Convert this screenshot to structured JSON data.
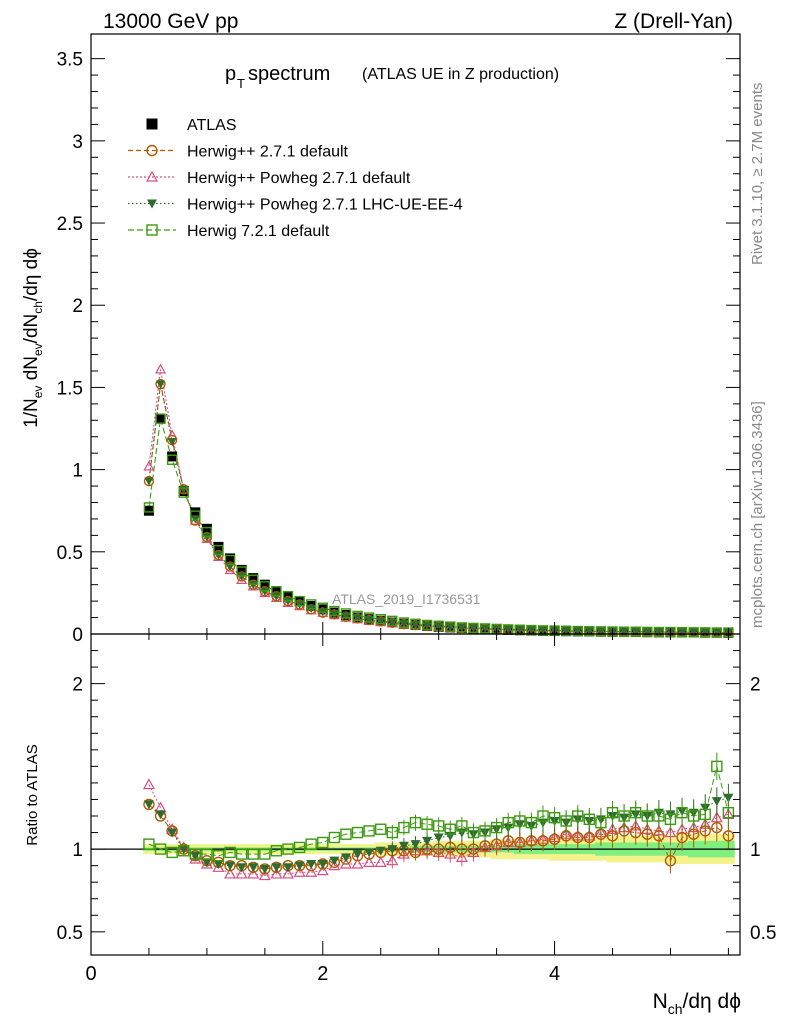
{
  "header": {
    "energy": "13000 GeV pp",
    "process": "Z (Drell-Yan)"
  },
  "side_labels": {
    "rivet": "Rivet 3.1.10, ≥ 2.7M events",
    "mcplots": "mcplots.cern.ch [arXiv:1306.3436]"
  },
  "watermark": "ATLAS_2019_I1736531",
  "colors": {
    "atlas": "#000000",
    "herwig271": "#b35a00",
    "powheg": "#d64d82",
    "powheg_ue": "#2f6a2f",
    "herwig721": "#3c9a10",
    "band_inner": "#7ff07f",
    "band_outer": "#f4f28a"
  },
  "chart_data": [
    {
      "type": "scatter",
      "title_main": "p",
      "title_sub": "T",
      "title_rest": " spectrum",
      "title_note": "(ATLAS UE in Z production)",
      "xlabel": "N_ch/dη dϕ",
      "ylabel": "1/N_ev dN_ev/dN_ch/dη dϕ",
      "xlim": [
        0,
        5.6
      ],
      "ylim": [
        0,
        3.65
      ],
      "xticks": [
        0,
        2,
        4
      ],
      "yticks": [
        0,
        0.5,
        1,
        1.5,
        2,
        2.5,
        3,
        3.5
      ],
      "ytick_labels": [
        "0",
        "0.5",
        "1",
        "1.5",
        "2",
        "2.5",
        "3",
        "3.5"
      ],
      "x": [
        0.5,
        0.6,
        0.7,
        0.8,
        0.9,
        1.0,
        1.1,
        1.2,
        1.3,
        1.4,
        1.5,
        1.6,
        1.7,
        1.8,
        1.9,
        2.0,
        2.1,
        2.2,
        2.3,
        2.4,
        2.5,
        2.6,
        2.7,
        2.8,
        2.9,
        3.0,
        3.1,
        3.2,
        3.3,
        3.4,
        3.5,
        3.6,
        3.7,
        3.8,
        3.9,
        4.0,
        4.1,
        4.2,
        4.3,
        4.4,
        4.5,
        4.6,
        4.7,
        4.8,
        4.9,
        5.0,
        5.1,
        5.2,
        5.3,
        5.4,
        5.5
      ],
      "legend": [
        {
          "key": "atlas",
          "label": "ATLAS"
        },
        {
          "key": "herwig271",
          "label": "Herwig++ 2.7.1 default"
        },
        {
          "key": "powheg",
          "label": "Herwig++ Powheg 2.7.1 default"
        },
        {
          "key": "powheg_ue",
          "label": "Herwig++ Powheg 2.7.1 LHC-UE-EE-4"
        },
        {
          "key": "herwig721",
          "label": "Herwig 7.2.1 default"
        }
      ],
      "series": [
        {
          "key": "atlas",
          "name": "ATLAS",
          "values": [
            0.75,
            1.31,
            1.08,
            0.87,
            0.74,
            0.64,
            0.53,
            0.46,
            0.39,
            0.34,
            0.3,
            0.26,
            0.23,
            0.2,
            0.17,
            0.15,
            0.13,
            0.115,
            0.1,
            0.09,
            0.08,
            0.07,
            0.062,
            0.055,
            0.049,
            0.044,
            0.04,
            0.036,
            0.033,
            0.03,
            0.027,
            0.025,
            0.023,
            0.021,
            0.019,
            0.018,
            0.017,
            0.016,
            0.015,
            0.014,
            0.013,
            0.012,
            0.012,
            0.011,
            0.01,
            0.01,
            0.009,
            0.009,
            0.008,
            0.008,
            0.007
          ]
        },
        {
          "key": "herwig271",
          "name": "Herwig++ 2.7.1 default",
          "values": [
            0.93,
            1.52,
            1.18,
            0.88,
            0.69,
            0.59,
            0.48,
            0.41,
            0.35,
            0.3,
            0.26,
            0.23,
            0.2,
            0.18,
            0.15,
            0.13,
            0.12,
            0.105,
            0.095,
            0.085,
            0.077,
            0.068,
            0.06,
            0.054,
            0.05,
            0.045,
            0.041,
            0.037,
            0.034,
            0.031,
            0.028,
            0.026,
            0.024,
            0.022,
            0.02,
            0.019,
            0.018,
            0.017,
            0.016,
            0.015,
            0.014,
            0.013,
            0.013,
            0.012,
            0.011,
            0.011,
            0.01,
            0.01,
            0.009,
            0.009,
            0.008
          ]
        },
        {
          "key": "powheg",
          "name": "Herwig++ Powheg 2.7.1 default",
          "values": [
            1.02,
            1.61,
            1.21,
            0.88,
            0.69,
            0.58,
            0.47,
            0.39,
            0.33,
            0.29,
            0.25,
            0.22,
            0.19,
            0.17,
            0.145,
            0.13,
            0.115,
            0.1,
            0.09,
            0.08,
            0.073,
            0.065,
            0.058,
            0.052,
            0.047,
            0.043,
            0.039,
            0.035,
            0.032,
            0.029,
            0.027,
            0.025,
            0.023,
            0.021,
            0.02,
            0.019,
            0.018,
            0.017,
            0.016,
            0.015,
            0.014,
            0.013,
            0.013,
            0.012,
            0.011,
            0.011,
            0.01,
            0.01,
            0.009,
            0.009,
            0.008
          ]
        },
        {
          "key": "powheg_ue",
          "name": "Herwig++ Powheg 2.7.1 LHC-UE-EE-4",
          "values": [
            0.93,
            1.52,
            1.17,
            0.88,
            0.7,
            0.59,
            0.48,
            0.41,
            0.35,
            0.3,
            0.26,
            0.23,
            0.2,
            0.18,
            0.155,
            0.135,
            0.12,
            0.11,
            0.097,
            0.087,
            0.079,
            0.071,
            0.063,
            0.057,
            0.052,
            0.047,
            0.043,
            0.039,
            0.036,
            0.033,
            0.03,
            0.028,
            0.026,
            0.024,
            0.022,
            0.021,
            0.02,
            0.019,
            0.018,
            0.017,
            0.016,
            0.015,
            0.014,
            0.013,
            0.012,
            0.012,
            0.011,
            0.011,
            0.01,
            0.01,
            0.009
          ]
        },
        {
          "key": "herwig721",
          "name": "Herwig 7.2.1 default",
          "values": [
            0.77,
            1.31,
            1.06,
            0.86,
            0.72,
            0.62,
            0.51,
            0.45,
            0.38,
            0.33,
            0.29,
            0.26,
            0.23,
            0.2,
            0.18,
            0.16,
            0.14,
            0.125,
            0.11,
            0.1,
            0.09,
            0.08,
            0.07,
            0.062,
            0.055,
            0.05,
            0.045,
            0.04,
            0.037,
            0.034,
            0.031,
            0.028,
            0.026,
            0.024,
            0.022,
            0.021,
            0.02,
            0.018,
            0.017,
            0.016,
            0.015,
            0.014,
            0.014,
            0.013,
            0.012,
            0.012,
            0.011,
            0.01,
            0.01,
            0.009,
            0.009
          ]
        }
      ]
    },
    {
      "type": "scatter",
      "ylabel": "Ratio to ATLAS",
      "xlim": [
        0,
        5.6
      ],
      "ylim": [
        0.36,
        2.3
      ],
      "yticks": [
        0.5,
        1,
        2
      ],
      "ytick_labels": [
        "0.5",
        "1",
        "2"
      ],
      "xticks": [
        0,
        2,
        4
      ],
      "xtick_labels": [
        "0",
        "2",
        "4"
      ],
      "band_inner": [
        0.99,
        0.99,
        0.99,
        0.99,
        0.99,
        0.99,
        0.99,
        0.99,
        0.99,
        0.99,
        0.99,
        0.99,
        0.99,
        0.99,
        0.99,
        0.99,
        0.99,
        0.99,
        0.99,
        0.99,
        0.99,
        0.99,
        0.99,
        0.98,
        0.98,
        0.98,
        0.98,
        0.98,
        0.98,
        0.98,
        0.98,
        0.98,
        0.97,
        0.97,
        0.97,
        0.97,
        0.97,
        0.97,
        0.97,
        0.96,
        0.96,
        0.96,
        0.96,
        0.96,
        0.96,
        0.96,
        0.96,
        0.95,
        0.95,
        0.95,
        0.95
      ],
      "band_outer": [
        0.97,
        0.97,
        0.97,
        0.97,
        0.97,
        0.97,
        0.97,
        0.97,
        0.97,
        0.97,
        0.97,
        0.97,
        0.97,
        0.97,
        0.97,
        0.97,
        0.97,
        0.97,
        0.97,
        0.97,
        0.96,
        0.96,
        0.96,
        0.96,
        0.96,
        0.95,
        0.95,
        0.95,
        0.95,
        0.95,
        0.94,
        0.94,
        0.94,
        0.94,
        0.94,
        0.93,
        0.93,
        0.93,
        0.93,
        0.93,
        0.92,
        0.92,
        0.92,
        0.92,
        0.92,
        0.91,
        0.91,
        0.91,
        0.91,
        0.91,
        0.91
      ],
      "series": [
        {
          "key": "herwig271",
          "values": [
            1.27,
            1.2,
            1.11,
            1.0,
            0.96,
            0.93,
            0.92,
            0.9,
            0.9,
            0.89,
            0.88,
            0.89,
            0.9,
            0.9,
            0.9,
            0.91,
            0.92,
            0.94,
            0.96,
            0.97,
            0.98,
            0.99,
            0.99,
            0.98,
            1.0,
            1.0,
            1.01,
            1.0,
            1.0,
            1.02,
            1.03,
            1.05,
            1.04,
            1.05,
            1.05,
            1.06,
            1.08,
            1.07,
            1.07,
            1.09,
            1.08,
            1.11,
            1.1,
            1.09,
            1.08,
            0.93,
            1.07,
            1.09,
            1.11,
            1.13,
            1.08
          ]
        },
        {
          "key": "powheg",
          "values": [
            1.39,
            1.25,
            1.12,
            1.01,
            0.94,
            0.91,
            0.89,
            0.85,
            0.85,
            0.85,
            0.84,
            0.85,
            0.85,
            0.86,
            0.86,
            0.87,
            0.9,
            0.91,
            0.91,
            0.92,
            0.92,
            0.93,
            0.97,
            0.99,
            0.99,
            0.98,
            0.97,
            0.95,
            0.98,
            1.01,
            1.02,
            1.04,
            1.04,
            1.05,
            1.06,
            1.07,
            1.09,
            1.08,
            1.08,
            1.1,
            1.12,
            1.13,
            1.14,
            1.12,
            1.11,
            1.1,
            1.12,
            1.13,
            1.15,
            1.19,
            1.21
          ]
        },
        {
          "key": "powheg_ue",
          "values": [
            1.27,
            1.21,
            1.1,
            1.0,
            0.96,
            0.92,
            0.91,
            0.9,
            0.89,
            0.89,
            0.88,
            0.89,
            0.89,
            0.9,
            0.91,
            0.91,
            0.93,
            0.95,
            0.97,
            0.98,
            0.99,
            1.0,
            1.02,
            1.03,
            1.05,
            1.07,
            1.08,
            1.1,
            1.09,
            1.1,
            1.12,
            1.13,
            1.15,
            1.14,
            1.16,
            1.17,
            1.16,
            1.18,
            1.17,
            1.18,
            1.2,
            1.19,
            1.21,
            1.2,
            1.22,
            1.21,
            1.23,
            1.22,
            1.25,
            1.29,
            1.31
          ]
        },
        {
          "key": "herwig721",
          "values": [
            1.03,
            1.0,
            0.98,
            0.99,
            0.97,
            0.97,
            0.96,
            0.98,
            0.97,
            0.97,
            0.97,
            0.99,
            1.0,
            1.01,
            1.03,
            1.04,
            1.07,
            1.09,
            1.1,
            1.11,
            1.12,
            1.1,
            1.13,
            1.16,
            1.15,
            1.14,
            1.12,
            1.14,
            1.1,
            1.11,
            1.13,
            1.16,
            1.17,
            1.16,
            1.2,
            1.19,
            1.17,
            1.2,
            1.18,
            1.16,
            1.22,
            1.2,
            1.22,
            1.2,
            1.2,
            1.18,
            1.22,
            1.2,
            1.21,
            1.5,
            1.22
          ]
        }
      ]
    }
  ]
}
